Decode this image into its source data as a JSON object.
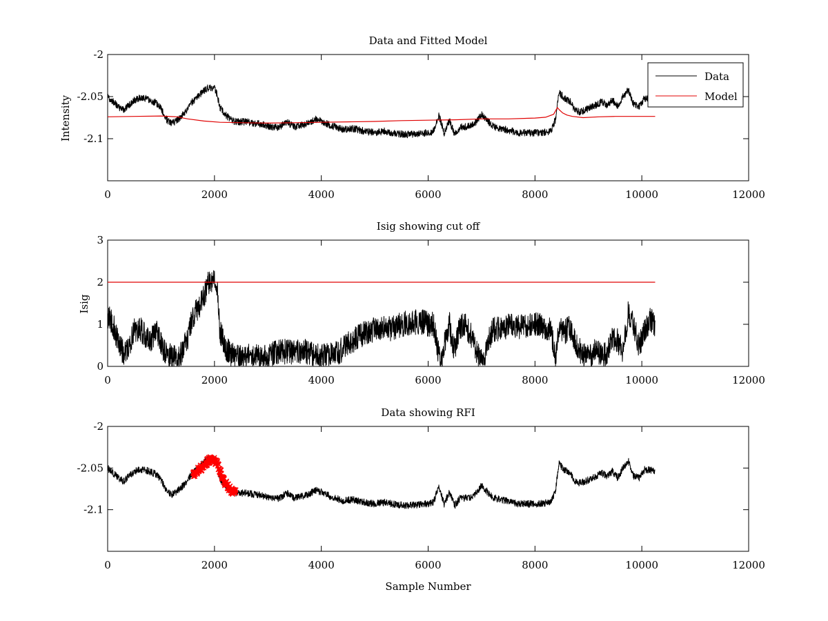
{
  "figure": {
    "xlabel": "Sample Number"
  },
  "chart_data": [
    {
      "type": "line",
      "title": "Data and Fitted Model",
      "xlabel": "",
      "ylabel": "Intensity",
      "xlim": [
        0,
        12000
      ],
      "ylim": [
        -2.15,
        -2.0
      ],
      "xticks": [
        0,
        2000,
        4000,
        6000,
        8000,
        10000,
        12000
      ],
      "xtick_labels": [
        "0",
        "2000",
        "4000",
        "6000",
        "8000",
        "10000",
        "12000"
      ],
      "yticks": [
        -2,
        -2.05,
        -2.1
      ],
      "ytick_labels": [
        "-2",
        "-2.05",
        "-2.1"
      ],
      "grid": false,
      "legend": {
        "position": "top-right",
        "entries": [
          "Data",
          "Model"
        ]
      },
      "series": [
        {
          "name": "Data",
          "color": "#000000",
          "noise": 0.0042,
          "x": [
            0,
            100,
            200,
            300,
            400,
            500,
            600,
            700,
            800,
            900,
            1000,
            1100,
            1200,
            1300,
            1400,
            1500,
            1600,
            1700,
            1800,
            1900,
            2000,
            2050,
            2100,
            2200,
            2300,
            2400,
            2600,
            2800,
            3000,
            3200,
            3350,
            3500,
            3700,
            3900,
            4000,
            4200,
            4400,
            4600,
            4800,
            5000,
            5200,
            5400,
            5600,
            5800,
            6000,
            6100,
            6200,
            6300,
            6400,
            6500,
            6600,
            6700,
            6800,
            6900,
            7000,
            7100,
            7200,
            7300,
            7500,
            7700,
            7900,
            8100,
            8300,
            8380,
            8450,
            8550,
            8650,
            8750,
            8850,
            8950,
            9050,
            9150,
            9250,
            9350,
            9450,
            9550,
            9650,
            9750,
            9850,
            9950,
            10050,
            10150,
            10250
          ],
          "values": [
            -2.05,
            -2.056,
            -2.062,
            -2.066,
            -2.06,
            -2.054,
            -2.052,
            -2.052,
            -2.055,
            -2.057,
            -2.064,
            -2.077,
            -2.082,
            -2.078,
            -2.072,
            -2.064,
            -2.055,
            -2.05,
            -2.043,
            -2.039,
            -2.04,
            -2.047,
            -2.063,
            -2.071,
            -2.077,
            -2.08,
            -2.08,
            -2.082,
            -2.085,
            -2.087,
            -2.08,
            -2.086,
            -2.083,
            -2.077,
            -2.079,
            -2.085,
            -2.089,
            -2.088,
            -2.091,
            -2.093,
            -2.091,
            -2.094,
            -2.095,
            -2.094,
            -2.093,
            -2.091,
            -2.072,
            -2.093,
            -2.079,
            -2.095,
            -2.086,
            -2.086,
            -2.085,
            -2.08,
            -2.071,
            -2.078,
            -2.085,
            -2.087,
            -2.09,
            -2.093,
            -2.093,
            -2.093,
            -2.091,
            -2.078,
            -2.045,
            -2.052,
            -2.055,
            -2.067,
            -2.068,
            -2.066,
            -2.062,
            -2.06,
            -2.056,
            -2.06,
            -2.054,
            -2.062,
            -2.05,
            -2.042,
            -2.06,
            -2.062,
            -2.052,
            -2.052,
            -2.054
          ]
        },
        {
          "name": "Model",
          "color": "#e00000",
          "noise": 0,
          "x": [
            0,
            500,
            1000,
            1300,
            1500,
            1800,
            2100,
            2500,
            3000,
            3500,
            4000,
            4500,
            5000,
            5500,
            6000,
            6500,
            7000,
            7500,
            8000,
            8200,
            8350,
            8420,
            8460,
            8520,
            8600,
            8700,
            8900,
            9200,
            9500,
            9800,
            10250
          ],
          "values": [
            -2.074,
            -2.0735,
            -2.073,
            -2.074,
            -2.0765,
            -2.079,
            -2.0805,
            -2.081,
            -2.0815,
            -2.081,
            -2.0805,
            -2.08,
            -2.0795,
            -2.0785,
            -2.078,
            -2.0775,
            -2.0765,
            -2.0765,
            -2.0755,
            -2.0745,
            -2.071,
            -2.063,
            -2.066,
            -2.0695,
            -2.072,
            -2.0735,
            -2.075,
            -2.074,
            -2.0735,
            -2.0735,
            -2.0735
          ]
        }
      ]
    },
    {
      "type": "line",
      "title": "Isig showing cut off",
      "xlabel": "",
      "ylabel": "Isig",
      "xlim": [
        0,
        12000
      ],
      "ylim": [
        0,
        3
      ],
      "xticks": [
        0,
        2000,
        4000,
        6000,
        8000,
        10000,
        12000
      ],
      "xtick_labels": [
        "0",
        "2000",
        "4000",
        "6000",
        "8000",
        "10000",
        "12000"
      ],
      "yticks": [
        0,
        1,
        2,
        3
      ],
      "ytick_labels": [
        "0",
        "1",
        "2",
        "3"
      ],
      "grid": false,
      "series": [
        {
          "name": "Isig",
          "color": "#000000",
          "noise": 0.3,
          "x": [
            0,
            100,
            200,
            300,
            400,
            500,
            600,
            700,
            800,
            900,
            1000,
            1100,
            1200,
            1300,
            1400,
            1500,
            1600,
            1700,
            1800,
            1900,
            2000,
            2050,
            2100,
            2200,
            2300,
            2500,
            2700,
            2900,
            3100,
            3300,
            3500,
            3700,
            3900,
            4100,
            4300,
            4500,
            4700,
            4900,
            5100,
            5300,
            5500,
            5700,
            5900,
            6000,
            6100,
            6200,
            6250,
            6300,
            6400,
            6450,
            6500,
            6600,
            6700,
            6800,
            6900,
            7000,
            7050,
            7100,
            7200,
            7300,
            7500,
            7700,
            7900,
            8100,
            8300,
            8380,
            8450,
            8550,
            8650,
            8750,
            8850,
            8950,
            9050,
            9150,
            9250,
            9350,
            9450,
            9550,
            9650,
            9750,
            9850,
            9950,
            10050,
            10150,
            10250
          ],
          "values": [
            1.2,
            1.0,
            0.6,
            0.3,
            0.5,
            0.85,
            0.9,
            0.75,
            0.6,
            0.85,
            0.55,
            0.25,
            0.25,
            0.2,
            0.35,
            0.7,
            1.2,
            1.4,
            1.7,
            2.0,
            2.05,
            1.9,
            0.85,
            0.45,
            0.3,
            0.2,
            0.25,
            0.2,
            0.3,
            0.35,
            0.35,
            0.35,
            0.25,
            0.25,
            0.3,
            0.55,
            0.7,
            0.85,
            0.9,
            0.9,
            1.0,
            1.05,
            1.05,
            1.0,
            1.0,
            0.3,
            0.15,
            0.55,
            1.0,
            0.5,
            0.45,
            0.95,
            0.95,
            0.75,
            0.35,
            0.15,
            0.1,
            0.5,
            0.85,
            0.9,
            0.95,
            0.95,
            1.0,
            1.0,
            0.85,
            0.2,
            0.9,
            0.8,
            0.95,
            0.55,
            0.35,
            0.25,
            0.25,
            0.4,
            0.2,
            0.35,
            0.7,
            0.6,
            0.35,
            1.3,
            0.95,
            0.5,
            0.8,
            1.1,
            1.0
          ]
        },
        {
          "name": "Cut off",
          "color": "#e00000",
          "noise": 0,
          "x": [
            0,
            10250
          ],
          "values": [
            2,
            2
          ]
        }
      ]
    },
    {
      "type": "line",
      "title": "Data showing RFI",
      "xlabel": "Sample Number",
      "ylabel": "",
      "xlim": [
        0,
        12000
      ],
      "ylim": [
        -2.15,
        -2.0
      ],
      "xticks": [
        0,
        2000,
        4000,
        6000,
        8000,
        10000,
        12000
      ],
      "xtick_labels": [
        "0",
        "2000",
        "4000",
        "6000",
        "8000",
        "10000",
        "12000"
      ],
      "yticks": [
        -2,
        -2.05,
        -2.1
      ],
      "ytick_labels": [
        "-2",
        "-2.05",
        "-2.1"
      ],
      "grid": false,
      "series": [
        {
          "name": "Data",
          "color": "#000000",
          "noise": 0.0042,
          "x": [
            0,
            100,
            200,
            300,
            400,
            500,
            600,
            700,
            800,
            900,
            1000,
            1100,
            1200,
            1300,
            1400,
            1500,
            1600,
            1700,
            1800,
            1900,
            2000,
            2050,
            2100,
            2200,
            2300,
            2400,
            2600,
            2800,
            3000,
            3200,
            3350,
            3500,
            3700,
            3900,
            4000,
            4200,
            4400,
            4600,
            4800,
            5000,
            5200,
            5400,
            5600,
            5800,
            6000,
            6100,
            6200,
            6300,
            6400,
            6500,
            6600,
            6700,
            6800,
            6900,
            7000,
            7100,
            7200,
            7300,
            7500,
            7700,
            7900,
            8100,
            8300,
            8380,
            8450,
            8550,
            8650,
            8750,
            8850,
            8950,
            9050,
            9150,
            9250,
            9350,
            9450,
            9550,
            9650,
            9750,
            9850,
            9950,
            10050,
            10150,
            10250
          ],
          "values": [
            -2.05,
            -2.056,
            -2.062,
            -2.066,
            -2.06,
            -2.054,
            -2.052,
            -2.052,
            -2.055,
            -2.057,
            -2.064,
            -2.077,
            -2.082,
            -2.078,
            -2.072,
            -2.064,
            -2.055,
            -2.05,
            -2.043,
            -2.039,
            -2.04,
            -2.047,
            -2.063,
            -2.071,
            -2.077,
            -2.08,
            -2.08,
            -2.082,
            -2.085,
            -2.087,
            -2.08,
            -2.086,
            -2.083,
            -2.077,
            -2.079,
            -2.085,
            -2.089,
            -2.088,
            -2.091,
            -2.093,
            -2.091,
            -2.094,
            -2.095,
            -2.094,
            -2.093,
            -2.091,
            -2.072,
            -2.093,
            -2.079,
            -2.095,
            -2.086,
            -2.086,
            -2.085,
            -2.08,
            -2.071,
            -2.078,
            -2.085,
            -2.087,
            -2.09,
            -2.093,
            -2.093,
            -2.093,
            -2.091,
            -2.078,
            -2.045,
            -2.052,
            -2.055,
            -2.067,
            -2.068,
            -2.066,
            -2.062,
            -2.06,
            -2.056,
            -2.06,
            -2.054,
            -2.062,
            -2.05,
            -2.042,
            -2.06,
            -2.062,
            -2.052,
            -2.052,
            -2.054
          ]
        },
        {
          "name": "RFI",
          "color": "#ff0000",
          "marker": "x",
          "noise": 0.004,
          "x": [
            1600,
            1650,
            1700,
            1750,
            1800,
            1850,
            1900,
            1950,
            2000,
            2050,
            2100,
            2150,
            2200,
            2250,
            2300,
            2350,
            2400
          ],
          "values": [
            -2.057,
            -2.055,
            -2.052,
            -2.05,
            -2.047,
            -2.044,
            -2.041,
            -2.04,
            -2.041,
            -2.044,
            -2.052,
            -2.062,
            -2.068,
            -2.072,
            -2.076,
            -2.079,
            -2.08
          ]
        }
      ]
    }
  ]
}
